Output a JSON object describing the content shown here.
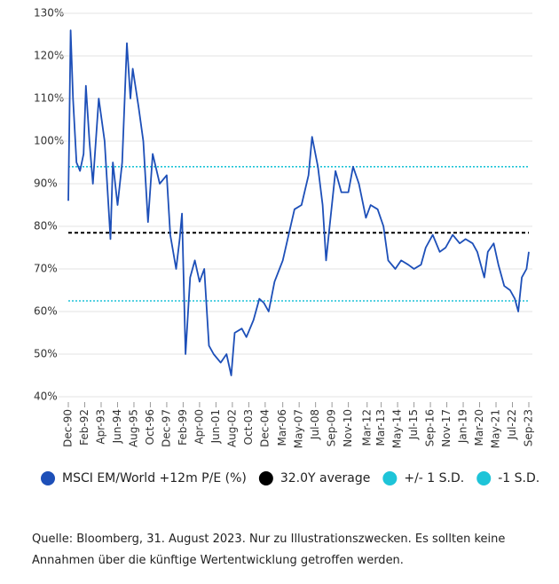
{
  "chart_data": {
    "type": "line",
    "x": [
      "Dec-90",
      "Feb-91",
      "Apr-91",
      "Jul-91",
      "Oct-91",
      "Jan-92",
      "Mar-92",
      "Jun-92",
      "Sep-92",
      "Feb-93",
      "Jul-93",
      "Dec-93",
      "Feb-94",
      "Jun-94",
      "Oct-94",
      "Feb-95",
      "May-95",
      "Jul-95",
      "Dec-95",
      "Apr-96",
      "Aug-96",
      "Dec-96",
      "Jun-97",
      "Dec-97",
      "Mar-98",
      "Aug-98",
      "Nov-98",
      "Jan-99",
      "Apr-99",
      "Aug-99",
      "Dec-99",
      "Apr-00",
      "Aug-00",
      "Dec-00",
      "Apr-01",
      "Oct-01",
      "Mar-02",
      "Jul-02",
      "Oct-02",
      "Apr-03",
      "Aug-03",
      "Feb-04",
      "Jul-04",
      "Nov-04",
      "Mar-05",
      "Aug-05",
      "Mar-06",
      "Aug-06",
      "Jan-07",
      "Jul-07",
      "Jan-08",
      "Apr-08",
      "Sep-08",
      "Jan-09",
      "Apr-09",
      "Jul-09",
      "Dec-09",
      "May-10",
      "Nov-10",
      "Mar-11",
      "Aug-11",
      "Feb-12",
      "Jun-12",
      "Dec-12",
      "May-13",
      "Sep-13",
      "Mar-14",
      "Aug-14",
      "Feb-15",
      "Jul-15",
      "Jan-16",
      "May-16",
      "Nov-16",
      "May-17",
      "Oct-17",
      "Apr-18",
      "Oct-18",
      "Mar-19",
      "Sep-19",
      "Jan-20",
      "Jul-20",
      "Oct-20",
      "Mar-21",
      "Jul-21",
      "Dec-21",
      "May-22",
      "Sep-22",
      "Dec-22",
      "Mar-23",
      "Jul-23",
      "Sep-23"
    ],
    "series": [
      {
        "name": "MSCI EM/World +12m P/E (%)",
        "color": "#1d4fb8",
        "values": [
          86,
          126,
          110,
          95,
          93,
          97,
          113,
          100,
          90,
          110,
          100,
          77,
          95,
          85,
          95,
          123,
          110,
          117,
          108,
          100,
          81,
          97,
          90,
          92,
          78,
          70,
          77,
          83,
          50,
          68,
          72,
          67,
          70,
          52,
          50,
          48,
          50,
          45,
          55,
          56,
          54,
          58,
          63,
          62,
          60,
          67,
          72,
          78,
          84,
          85,
          92,
          101,
          94,
          85,
          72,
          80,
          93,
          88,
          88,
          94,
          90,
          82,
          85,
          84,
          80,
          72,
          70,
          72,
          71,
          70,
          71,
          75,
          78,
          74,
          75,
          78,
          76,
          77,
          76,
          74,
          68,
          74,
          76,
          71,
          66,
          65,
          63,
          60,
          68,
          70,
          74
        ]
      }
    ],
    "reference_lines": [
      {
        "name": "32.0Y average",
        "value": 78.5,
        "color": "#000000",
        "style": "dashed"
      },
      {
        "name": "+/- 1 S.D.",
        "value": 94,
        "color": "#1ec4d8",
        "style": "dotted"
      },
      {
        "name": "-1 S.D.",
        "value": 62.5,
        "color": "#1ec4d8",
        "style": "dotted"
      }
    ],
    "xticks": [
      "Dec-90",
      "Feb-92",
      "Apr-93",
      "Jun-94",
      "Aug-95",
      "Oct-96",
      "Dec-97",
      "Feb-99",
      "Apr-00",
      "Jun-01",
      "Aug-02",
      "Oct-03",
      "Dec-04",
      "Mar-06",
      "May-07",
      "Jul-08",
      "Sep-09",
      "Nov-10",
      "Mar-12",
      "Mar-13",
      "May-14",
      "Jul-15",
      "Sep-16",
      "Nov-17",
      "Jan-19",
      "Mar-20",
      "May-21",
      "Jul-22",
      "Sep-23"
    ],
    "xlim": [
      "Dec-90",
      "Sep-23"
    ],
    "ylim": [
      40,
      130
    ],
    "yticks": [
      {
        "value": 40,
        "label": "40%"
      },
      {
        "value": 50,
        "label": "50%"
      },
      {
        "value": 60,
        "label": "60%"
      },
      {
        "value": 70,
        "label": "70%"
      },
      {
        "value": 80,
        "label": "80%"
      },
      {
        "value": 90,
        "label": "90%"
      },
      {
        "value": 100,
        "label": "100%"
      },
      {
        "value": 110,
        "label": "110%"
      },
      {
        "value": 120,
        "label": "120%"
      },
      {
        "value": 130,
        "label": "130%"
      }
    ],
    "grid": true,
    "source": "Quelle: Bloomberg, 31. August 2023. Nur zu Illustrationszwecken. Es sollten keine Annahmen über die künftige Wertentwicklung getroffen werden."
  }
}
